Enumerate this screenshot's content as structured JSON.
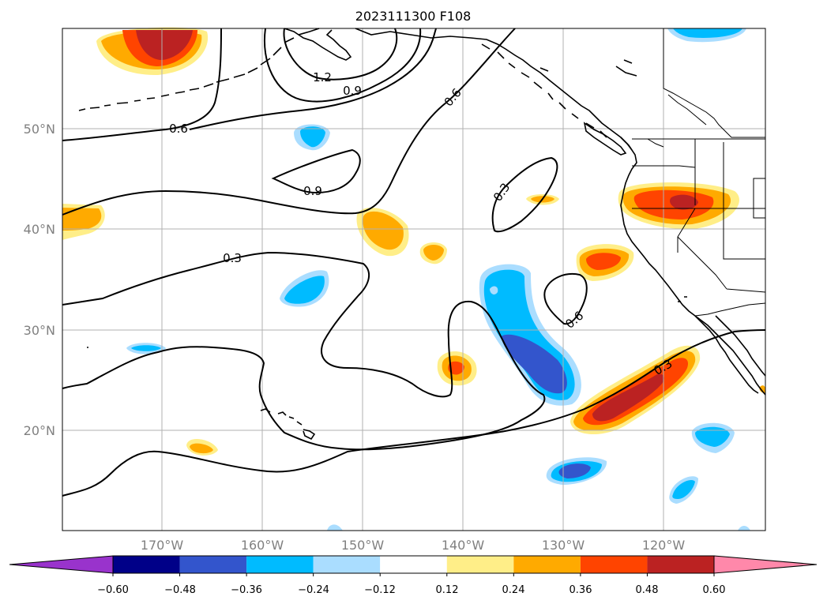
{
  "title": "2023111300 F108",
  "lat_labels": [
    "50°N",
    "40°N",
    "30°N",
    "20°N"
  ],
  "lon_labels": [
    "170°W",
    "160°W",
    "150°W",
    "140°W",
    "130°W",
    "120°W"
  ],
  "contour_labels": [
    "1.2",
    "0.9",
    "0.6",
    "0.9",
    "0.3",
    "0.3",
    "0.6",
    "0.3"
  ],
  "colorbar": {
    "ticks": [
      "−0.60",
      "−0.48",
      "−0.36",
      "−0.24",
      "−0.12",
      "0.12",
      "0.24",
      "0.36",
      "0.48",
      "0.60"
    ],
    "colors": [
      "#9933cc",
      "#000088",
      "#3355cc",
      "#00bbff",
      "#aaddff",
      "#ffffff",
      "#ffee88",
      "#ffaa00",
      "#ff4400",
      "#bb2222",
      "#ff88aa"
    ]
  }
}
